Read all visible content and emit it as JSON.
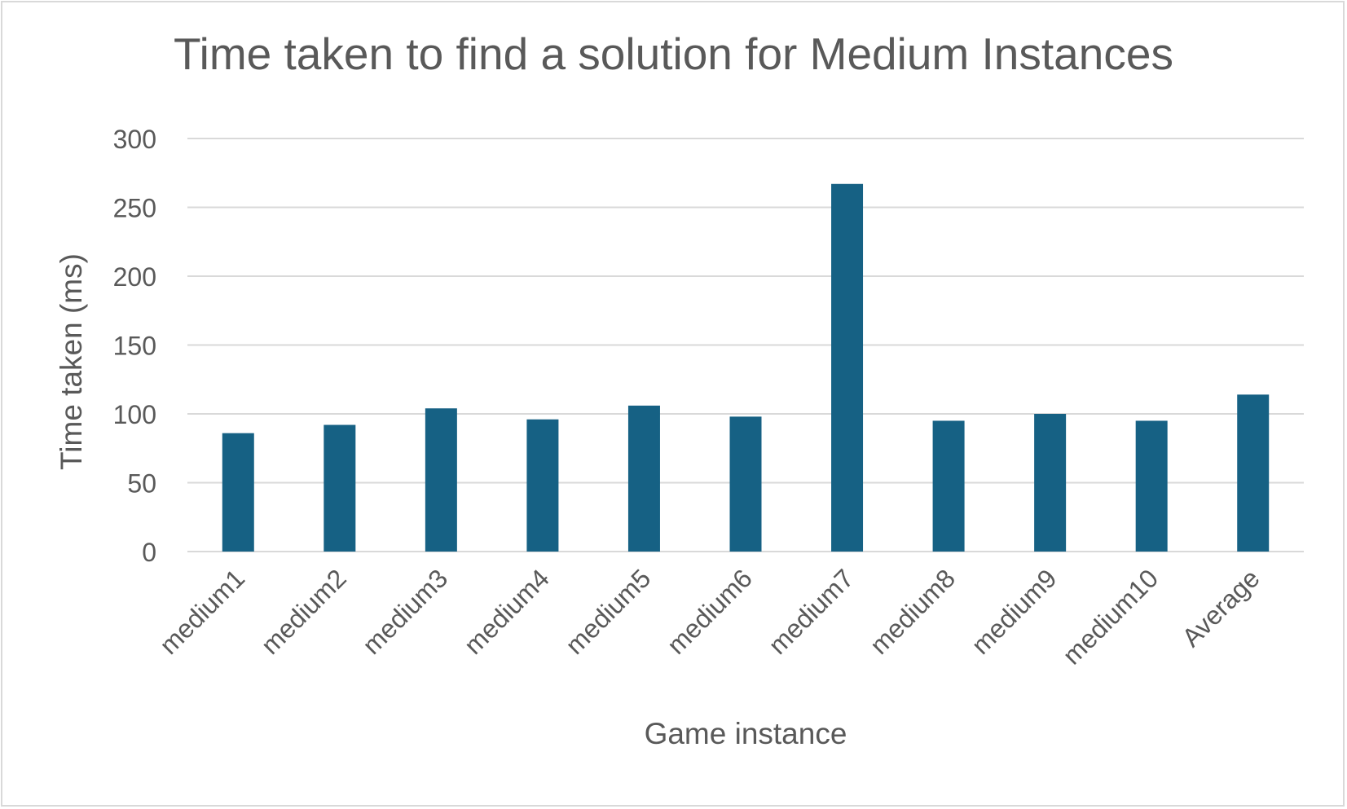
{
  "chart_data": {
    "type": "bar",
    "title": "Time taken to find a solution for Medium Instances",
    "xlabel": "Game instance",
    "ylabel": "Time taken (ms)",
    "categories": [
      "medium1",
      "medium2",
      "medium3",
      "medium4",
      "medium5",
      "medium6",
      "medium7",
      "medium8",
      "medium9",
      "medium10",
      "Average"
    ],
    "values": [
      86,
      92,
      104,
      96,
      106,
      98,
      267,
      95,
      100,
      95,
      114
    ],
    "ylim": [
      0,
      300
    ],
    "yticks": [
      0,
      50,
      100,
      150,
      200,
      250,
      300
    ],
    "grid": true,
    "bar_color": "#166184",
    "grid_color": "#d9d9d9",
    "text_color": "#595959"
  }
}
